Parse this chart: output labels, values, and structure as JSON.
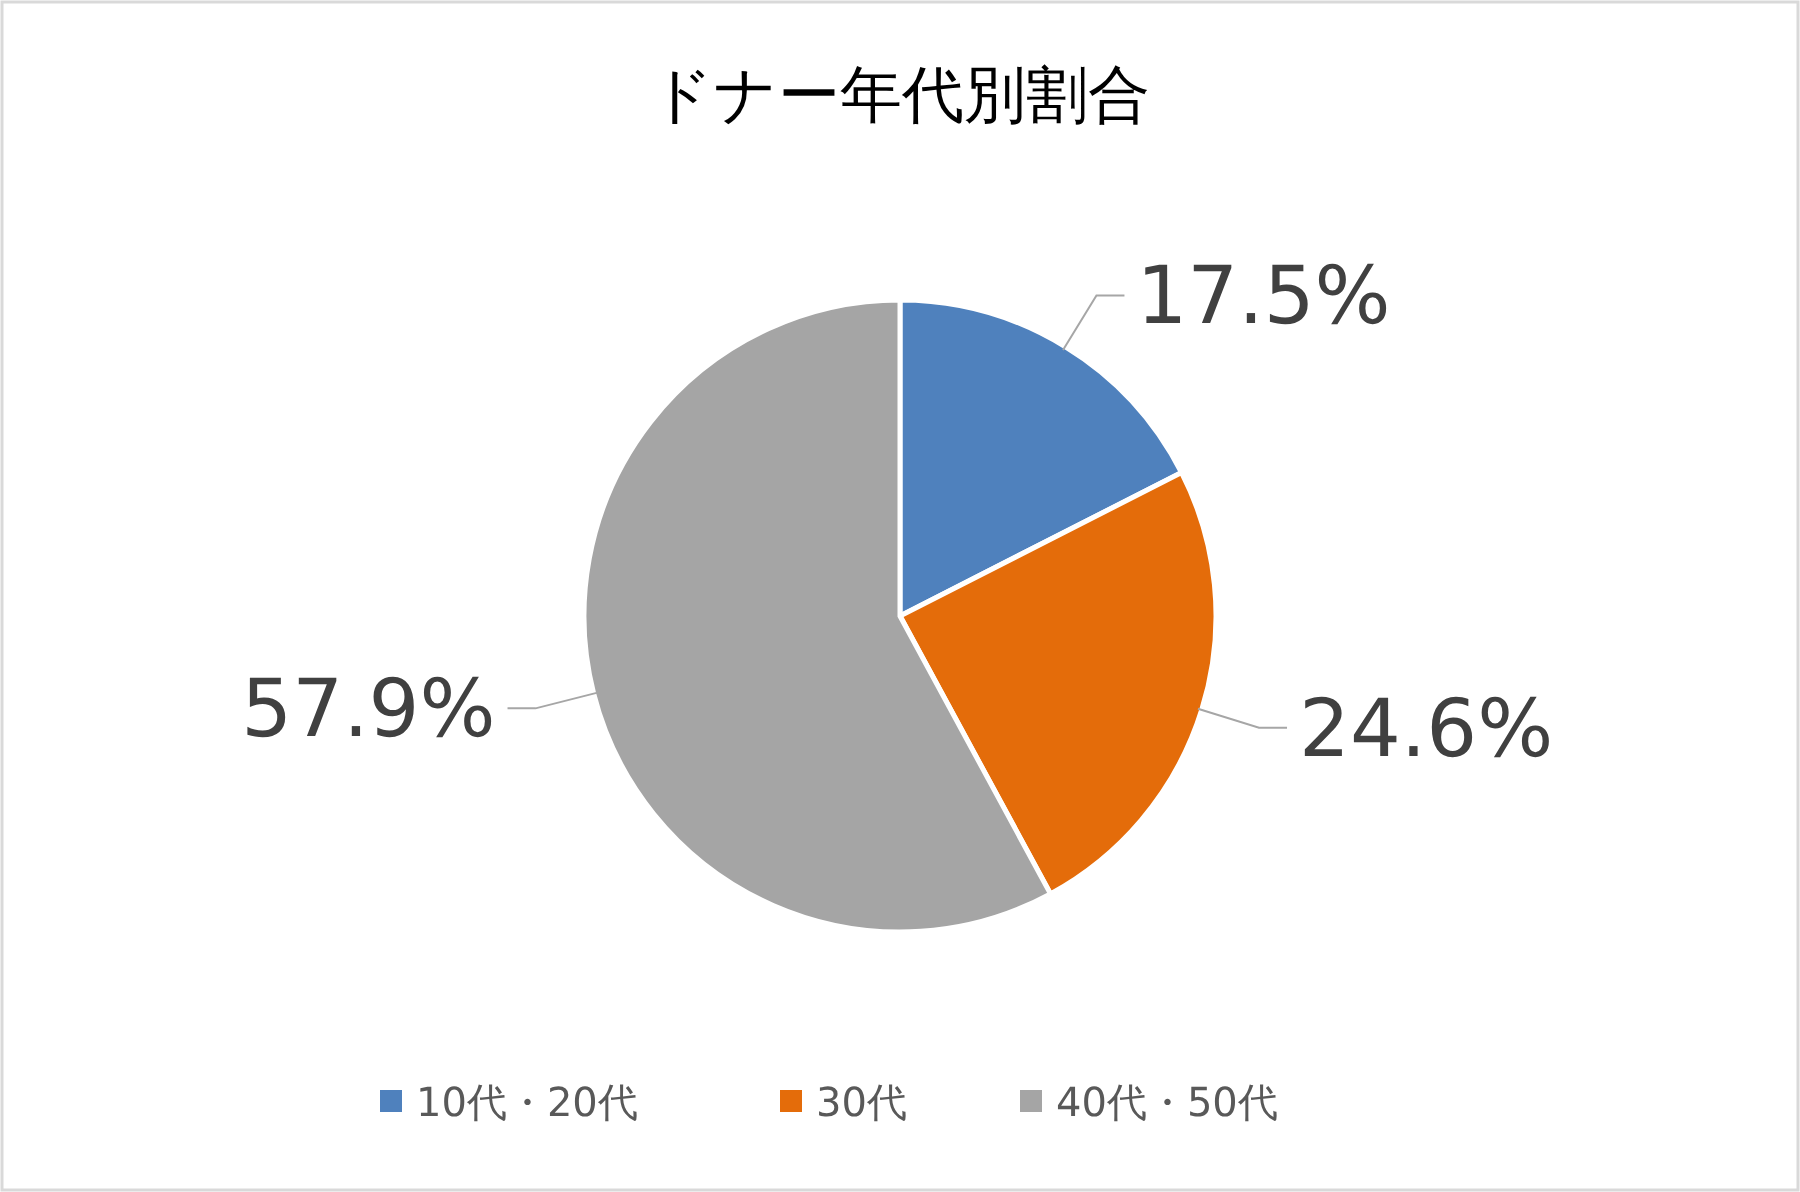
{
  "chart_data": {
    "type": "pie",
    "title": "ドナー年代別割合",
    "categories": [
      "10代・20代",
      "30代",
      "40代・50代"
    ],
    "values": [
      17.5,
      24.6,
      57.9
    ],
    "colors": [
      "#4f81bd",
      "#e46c0a",
      "#a5a5a5"
    ],
    "value_labels": [
      "17.5%",
      "24.6%",
      "57.9%"
    ],
    "legend": "bottom"
  }
}
